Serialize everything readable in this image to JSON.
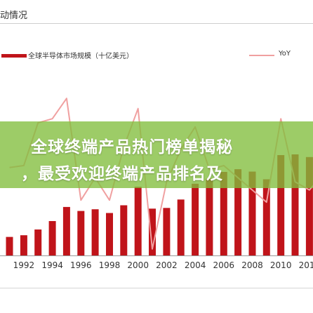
{
  "header": {
    "title": "动情况"
  },
  "banner": {
    "line1": "全球终端产品热门榜单揭秘",
    "line2": "，最受欢迎终端产品排名及"
  },
  "chart_data": {
    "type": "bar",
    "title": "",
    "xlabel": "",
    "ylabel": "",
    "categories": [
      "1991",
      "1992",
      "1993",
      "1994",
      "1995",
      "1996",
      "1997",
      "1998",
      "1999",
      "2000",
      "2001",
      "2002",
      "2003",
      "2004",
      "2005",
      "2006",
      "2007",
      "2008",
      "2009",
      "2010",
      "2011",
      "2012",
      "2013"
    ],
    "xtick_labels": [
      "1992",
      "1994",
      "1996",
      "1998",
      "2000",
      "2002",
      "2004",
      "2006",
      "2008",
      "2010",
      "2012"
    ],
    "series": [
      {
        "name": "全球半导体市场规模（十亿美元）",
        "kind": "bar",
        "values": [
          55,
          60,
          77,
          102,
          144,
          132,
          137,
          126,
          149,
          204,
          139,
          141,
          166,
          213,
          228,
          248,
          256,
          249,
          226,
          298,
          300,
          292,
          306
        ]
      },
      {
        "name": "YoY",
        "kind": "line",
        "values": [
          8,
          9,
          30,
          32,
          42,
          -8,
          3,
          -8,
          18,
          37,
          -32,
          1,
          17,
          28,
          7,
          9,
          3,
          -3,
          -9,
          32,
          1,
          -3,
          5
        ]
      }
    ],
    "legend_position": "top",
    "grid": false,
    "colors": {
      "bar": "#c0141a",
      "line": "#f0a0a0"
    }
  }
}
